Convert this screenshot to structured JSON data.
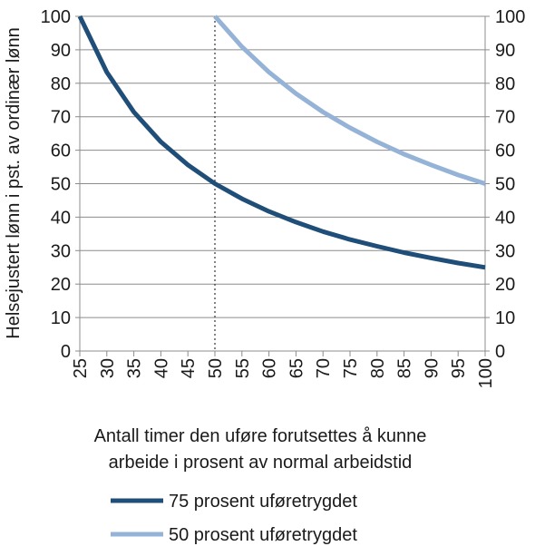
{
  "chart_data": {
    "type": "line",
    "title": "",
    "xlabel": "Antall timer den uføre forutsettes å kunne arbeide i prosent av normal arbeidstid",
    "xlabel_lines": [
      "Antall timer den uføre forutsettes å kunne",
      "arbeide i prosent av normal arbeidstid"
    ],
    "ylabel": "Helsejustert lønn i pst. av ordinær lønn",
    "xlim": [
      25,
      100
    ],
    "ylim": [
      0,
      100
    ],
    "x_ticks": [
      "25",
      "30",
      "35",
      "40",
      "45",
      "50",
      "55",
      "60",
      "65",
      "70",
      "75",
      "80",
      "85",
      "90",
      "95",
      "100"
    ],
    "y_ticks": [
      "0",
      "10",
      "20",
      "30",
      "40",
      "50",
      "60",
      "70",
      "80",
      "90",
      "100"
    ],
    "y_ticks_right": [
      "0",
      "10",
      "20",
      "30",
      "40",
      "50",
      "60",
      "70",
      "80",
      "90",
      "100"
    ],
    "grid": "horizontal",
    "legend_position": "bottom",
    "reference_line": {
      "x": 50,
      "style": "dotted"
    },
    "series": [
      {
        "name": "75 prosent uføretrygdet",
        "color": "#1f4e79",
        "x": [
          25,
          30,
          35,
          40,
          45,
          50,
          55,
          60,
          65,
          70,
          75,
          80,
          85,
          90,
          95,
          100
        ],
        "values": [
          100,
          83.3,
          71.4,
          62.5,
          55.6,
          50,
          45.5,
          41.7,
          38.5,
          35.7,
          33.3,
          31.3,
          29.4,
          27.8,
          26.3,
          25
        ]
      },
      {
        "name": "50 prosent uføretrygdet",
        "color": "#95b3d7",
        "x": [
          50,
          55,
          60,
          65,
          70,
          75,
          80,
          85,
          90,
          95,
          100
        ],
        "values": [
          100,
          90.9,
          83.3,
          76.9,
          71.4,
          66.7,
          62.5,
          58.8,
          55.6,
          52.6,
          50
        ]
      }
    ]
  }
}
